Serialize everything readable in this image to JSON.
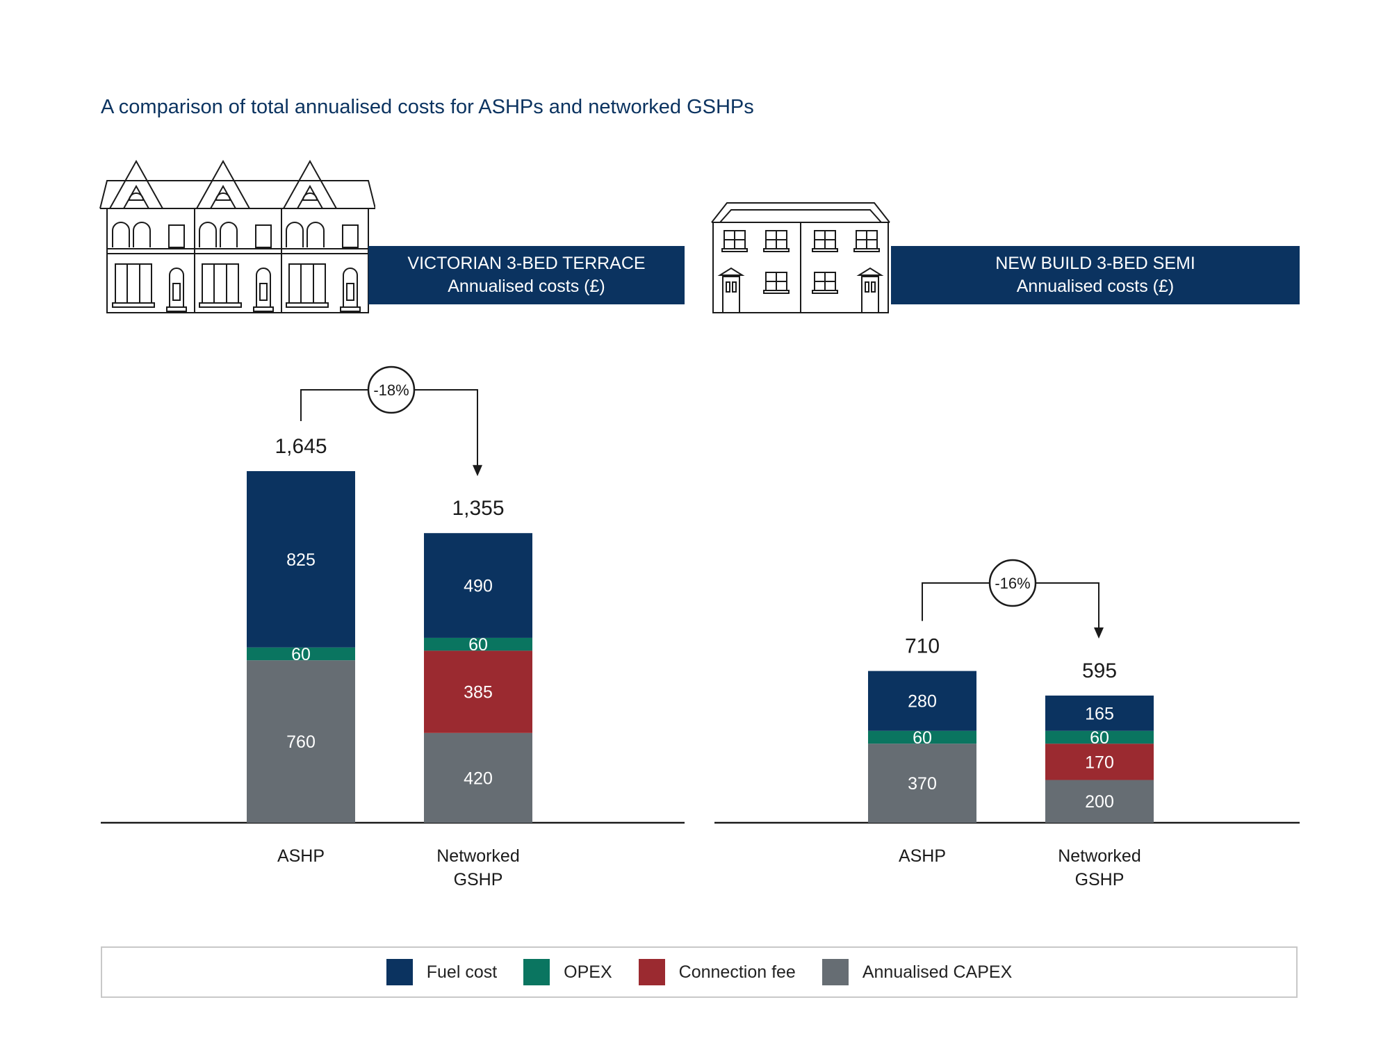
{
  "title": "A comparison of total annualised costs for ASHPs and networked GSHPs",
  "colors": {
    "fuel": "#0b3360",
    "opex": "#0a7560",
    "connection": "#9b2a30",
    "capex": "#666d73",
    "axis": "#1a1a1a",
    "text": "#1a1a1a",
    "white": "#ffffff"
  },
  "icons": [
    "victorian-terrace-house-icon",
    "new-build-semi-house-icon"
  ],
  "legend": [
    {
      "key": "fuel",
      "label": "Fuel cost"
    },
    {
      "key": "opex",
      "label": "OPEX"
    },
    {
      "key": "connection",
      "label": "Connection fee"
    },
    {
      "key": "capex",
      "label": "Annualised CAPEX"
    }
  ],
  "chart_data": [
    {
      "type": "bar",
      "stacked": true,
      "title": "VICTORIAN 3-BED TERRACE",
      "subtitle": "Annualised costs (£)",
      "categories": [
        [
          "ASHP"
        ],
        [
          "Networked",
          "GSHP"
        ]
      ],
      "series": [
        {
          "name": "Annualised CAPEX",
          "key": "capex",
          "values": [
            760,
            420
          ]
        },
        {
          "name": "Connection fee",
          "key": "connection",
          "values": [
            0,
            385
          ]
        },
        {
          "name": "OPEX",
          "key": "opex",
          "values": [
            60,
            60
          ]
        },
        {
          "name": "Fuel cost",
          "key": "fuel",
          "values": [
            825,
            490
          ]
        }
      ],
      "segment_labels": [
        [
          "760",
          "",
          "60",
          "825"
        ],
        [
          "420",
          "385",
          "60",
          "490"
        ]
      ],
      "totals": [
        1645,
        1355
      ],
      "total_labels": [
        "1,645",
        "1,355"
      ],
      "annotation": "-18%",
      "ylim": [
        0,
        1800
      ],
      "grid": false
    },
    {
      "type": "bar",
      "stacked": true,
      "title": "NEW BUILD 3-BED SEMI",
      "subtitle": "Annualised costs (£)",
      "categories": [
        [
          "ASHP"
        ],
        [
          "Networked",
          "GSHP"
        ]
      ],
      "series": [
        {
          "name": "Annualised CAPEX",
          "key": "capex",
          "values": [
            370,
            200
          ]
        },
        {
          "name": "Connection fee",
          "key": "connection",
          "values": [
            0,
            170
          ]
        },
        {
          "name": "OPEX",
          "key": "opex",
          "values": [
            60,
            60
          ]
        },
        {
          "name": "Fuel cost",
          "key": "fuel",
          "values": [
            280,
            165
          ]
        }
      ],
      "segment_labels": [
        [
          "370",
          "",
          "60",
          "280"
        ],
        [
          "200",
          "170",
          "60",
          "165"
        ]
      ],
      "totals": [
        710,
        595
      ],
      "total_labels": [
        "710",
        "595"
      ],
      "annotation": "-16%",
      "ylim": [
        0,
        1800
      ],
      "grid": false
    }
  ]
}
